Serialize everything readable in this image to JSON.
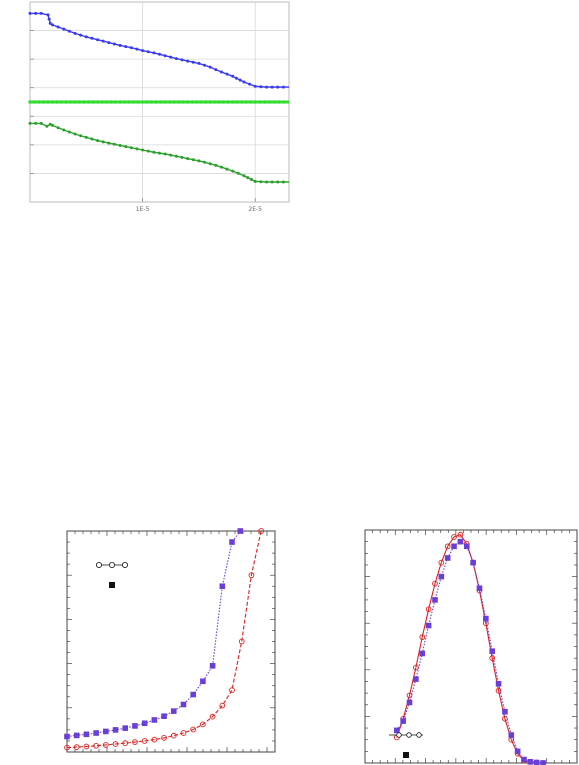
{
  "colors": {
    "blue": "#3a3af0",
    "green_line": "#33dd33",
    "green_dark": "#2aa02a",
    "red": "#e02020",
    "purple": "#6a3fd6",
    "frame": "#444444",
    "grid": "#d8d8d8",
    "legend_dark": "#111111"
  },
  "chart_data": [
    {
      "type": "line",
      "grid": true,
      "x_tick_labels": [
        "1E-5",
        "2E-5"
      ],
      "x_ticks": [
        1e-05,
        2e-05
      ],
      "xlim": [
        0,
        2.3e-05
      ],
      "ylim": [
        0,
        7
      ],
      "series": [
        {
          "color": "#3a3af0",
          "marker": "dot",
          "x": [
            0,
            1e-06,
            1.6e-06,
            1.8e-06,
            2e-06,
            3e-06,
            4e-06,
            5e-06,
            6e-06,
            7e-06,
            8e-06,
            9e-06,
            1e-05,
            1.1e-05,
            1.2e-05,
            1.3e-05,
            1.4e-05,
            1.5e-05,
            1.6e-05,
            1.7e-05,
            1.8e-05,
            1.9e-05,
            2e-05,
            2.1e-05,
            2.2e-05,
            2.3e-05
          ],
          "y": [
            6.6,
            6.6,
            6.55,
            6.25,
            6.2,
            6.05,
            5.9,
            5.78,
            5.68,
            5.58,
            5.48,
            5.4,
            5.3,
            5.22,
            5.12,
            5.02,
            4.93,
            4.85,
            4.72,
            4.55,
            4.4,
            4.2,
            4.05,
            4.02,
            4.02,
            4.02
          ]
        },
        {
          "color": "#33dd33",
          "marker": "dot",
          "x": [
            0,
            2e-06,
            4e-06,
            6e-06,
            8e-06,
            1e-05,
            1.2e-05,
            1.4e-05,
            1.6e-05,
            1.8e-05,
            2e-05,
            2.3e-05
          ],
          "y": [
            3.5,
            3.5,
            3.5,
            3.5,
            3.5,
            3.5,
            3.5,
            3.5,
            3.5,
            3.5,
            3.5,
            3.5
          ]
        },
        {
          "color": "#2aa02a",
          "marker": "dot",
          "x": [
            0,
            1e-06,
            1.5e-06,
            1.8e-06,
            2e-06,
            3e-06,
            4e-06,
            5e-06,
            6e-06,
            7e-06,
            8e-06,
            9e-06,
            1e-05,
            1.1e-05,
            1.2e-05,
            1.3e-05,
            1.4e-05,
            1.5e-05,
            1.6e-05,
            1.7e-05,
            1.8e-05,
            1.9e-05,
            2e-05,
            2.1e-05,
            2.2e-05,
            2.3e-05
          ],
          "y": [
            2.75,
            2.75,
            2.65,
            2.72,
            2.68,
            2.52,
            2.38,
            2.26,
            2.15,
            2.06,
            1.98,
            1.9,
            1.82,
            1.74,
            1.68,
            1.6,
            1.52,
            1.44,
            1.34,
            1.22,
            1.08,
            0.92,
            0.72,
            0.7,
            0.7,
            0.7
          ]
        }
      ]
    },
    {
      "type": "line",
      "grid": false,
      "legend": "top-left",
      "xlim": [
        0,
        15
      ],
      "ylim": [
        0,
        10
      ],
      "series": [
        {
          "color": "#e02020",
          "marker": "open-circle",
          "line": "dashed",
          "x": [
            0,
            0.7,
            1.4,
            2.1,
            2.8,
            3.5,
            4.2,
            4.9,
            5.6,
            6.3,
            7.0,
            7.7,
            8.4,
            9.1,
            9.8,
            10.5,
            11.2,
            11.9,
            12.6,
            13.3,
            14.0
          ],
          "y": [
            0.2,
            0.22,
            0.25,
            0.28,
            0.32,
            0.36,
            0.4,
            0.45,
            0.5,
            0.56,
            0.64,
            0.74,
            0.86,
            1.02,
            1.25,
            1.6,
            2.1,
            2.8,
            5.0,
            8.0,
            10.0
          ]
        },
        {
          "color": "#6a3fd6",
          "marker": "filled-square",
          "line": "dotted",
          "x": [
            0,
            0.7,
            1.4,
            2.1,
            2.8,
            3.5,
            4.2,
            4.9,
            5.6,
            6.3,
            7.0,
            7.7,
            8.4,
            9.1,
            9.8,
            10.5,
            11.2,
            11.9,
            12.5
          ],
          "y": [
            0.7,
            0.75,
            0.8,
            0.86,
            0.93,
            1.0,
            1.08,
            1.18,
            1.3,
            1.45,
            1.62,
            1.85,
            2.15,
            2.6,
            3.2,
            3.9,
            7.5,
            9.5,
            10.0
          ]
        }
      ]
    },
    {
      "type": "line",
      "grid": false,
      "legend": "bottom-left",
      "xlim": [
        0,
        10
      ],
      "ylim": [
        0,
        10
      ],
      "series": [
        {
          "color": "#e02020",
          "marker": "open-circle",
          "line": "solid",
          "x": [
            1.5,
            1.8,
            2.1,
            2.4,
            2.7,
            3.0,
            3.3,
            3.6,
            3.9,
            4.2,
            4.5,
            4.8,
            5.1,
            5.4,
            5.7,
            6.0,
            6.3,
            6.6,
            6.9,
            7.2,
            7.5,
            7.8,
            8.1,
            8.4
          ],
          "y": [
            1.1,
            1.9,
            2.9,
            4.1,
            5.4,
            6.6,
            7.7,
            8.6,
            9.3,
            9.7,
            9.8,
            9.4,
            8.6,
            7.4,
            6.0,
            4.5,
            3.1,
            1.9,
            1.0,
            0.4,
            0.1,
            0.05,
            0.02,
            0.0
          ]
        },
        {
          "color": "#6a3fd6",
          "marker": "filled-square",
          "line": "dotted",
          "x": [
            1.5,
            1.8,
            2.1,
            2.4,
            2.7,
            3.0,
            3.3,
            3.6,
            3.9,
            4.2,
            4.5,
            4.8,
            5.1,
            5.4,
            5.7,
            6.0,
            6.3,
            6.6,
            6.9,
            7.2,
            7.5,
            7.8,
            8.1,
            8.4
          ],
          "y": [
            1.4,
            1.8,
            2.6,
            3.6,
            4.7,
            5.9,
            7.0,
            8.0,
            8.8,
            9.3,
            9.5,
            9.3,
            8.6,
            7.5,
            6.2,
            4.8,
            3.4,
            2.2,
            1.2,
            0.5,
            0.15,
            0.05,
            0.02,
            0.0
          ]
        }
      ]
    }
  ]
}
